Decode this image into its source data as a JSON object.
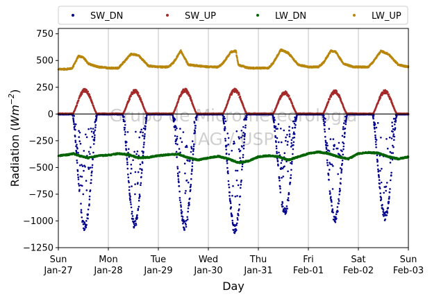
{
  "chart_data": {
    "type": "scatter",
    "xlabel": "Day",
    "ylabel_main": "Radiation (",
    "ylabel_unit": "Wm",
    "ylabel_exp": "−2",
    "ylabel_close": ")",
    "ylim": [
      -1250,
      800
    ],
    "yticks": [
      -1250,
      -1000,
      -750,
      -500,
      -250,
      0,
      250,
      500,
      750
    ],
    "ytick_labels": [
      "−1250",
      "−1000",
      "−750",
      "−500",
      "−250",
      "0",
      "250",
      "500",
      "750"
    ],
    "xlim_days": [
      0,
      7
    ],
    "xticks": [
      {
        "day": "Sun",
        "date": "Jan-27"
      },
      {
        "day": "Mon",
        "date": "Jan-28"
      },
      {
        "day": "Tue",
        "date": "Jan-29"
      },
      {
        "day": "Wed",
        "date": "Jan-30"
      },
      {
        "day": "Thu",
        "date": "Jan-31"
      },
      {
        "day": "Fri",
        "date": "Feb-01"
      },
      {
        "day": "Sat",
        "date": "Feb-02"
      },
      {
        "day": "Sun",
        "date": "Feb-03"
      }
    ],
    "grid": "vertical",
    "legend_position": "top",
    "zero_line": true,
    "watermark_line1": "Grupo de Micrometeorologia",
    "watermark_line2": "IAG / USP",
    "series": [
      {
        "name": "SW_DN",
        "color": "#00008b",
        "day_curve": {
          "sunrise": 0.28,
          "sunset": 0.78,
          "peak": [
            -1100,
            -1080,
            -1090,
            -1120,
            -950,
            -1020,
            -1000
          ]
        },
        "samples": [
          [
            0.0,
            -3
          ],
          [
            0.1,
            -2
          ],
          [
            0.2,
            -2
          ],
          [
            0.3,
            -150
          ],
          [
            0.35,
            -600
          ],
          [
            0.4,
            -900
          ],
          [
            0.45,
            -1150
          ],
          [
            0.5,
            -1000
          ],
          [
            0.55,
            -300
          ],
          [
            0.6,
            -800
          ],
          [
            0.65,
            -200
          ],
          [
            0.7,
            -50
          ],
          [
            0.8,
            -1
          ],
          [
            0.9,
            -2
          ],
          [
            1.3,
            -180
          ],
          [
            1.4,
            -700
          ],
          [
            1.45,
            -950
          ],
          [
            1.5,
            -1080
          ],
          [
            1.55,
            -1050
          ],
          [
            1.6,
            -880
          ],
          [
            1.65,
            -600
          ],
          [
            1.7,
            -300
          ],
          [
            1.75,
            -80
          ],
          [
            1.9,
            -2
          ],
          [
            2.3,
            -250
          ],
          [
            2.4,
            -600
          ],
          [
            2.45,
            -850
          ],
          [
            2.5,
            -1090
          ],
          [
            2.55,
            -900
          ],
          [
            2.6,
            -700
          ],
          [
            2.65,
            -400
          ],
          [
            2.7,
            -150
          ],
          [
            2.8,
            -2
          ],
          [
            2.9,
            -2
          ],
          [
            3.3,
            -200
          ],
          [
            3.4,
            -600
          ],
          [
            3.45,
            -900
          ],
          [
            3.5,
            -1120
          ],
          [
            3.55,
            -1000
          ],
          [
            3.6,
            -800
          ],
          [
            3.65,
            -500
          ],
          [
            3.7,
            -200
          ],
          [
            3.8,
            -3
          ],
          [
            3.9,
            -2
          ],
          [
            4.3,
            -200
          ],
          [
            4.4,
            -600
          ],
          [
            4.45,
            -800
          ],
          [
            4.5,
            -980
          ],
          [
            4.55,
            -900
          ],
          [
            4.6,
            -700
          ],
          [
            4.65,
            -450
          ],
          [
            4.7,
            -150
          ],
          [
            4.8,
            -2
          ],
          [
            4.9,
            -2
          ],
          [
            5.3,
            -150
          ],
          [
            5.4,
            -550
          ],
          [
            5.45,
            -850
          ],
          [
            5.5,
            -1030
          ],
          [
            5.55,
            -950
          ],
          [
            5.6,
            -750
          ],
          [
            5.65,
            -500
          ],
          [
            5.7,
            -200
          ],
          [
            5.8,
            -3
          ],
          [
            5.9,
            -2
          ],
          [
            6.3,
            -150
          ],
          [
            6.4,
            -550
          ],
          [
            6.45,
            -850
          ],
          [
            6.5,
            -1000
          ],
          [
            6.55,
            -950
          ],
          [
            6.6,
            -800
          ],
          [
            6.65,
            -500
          ],
          [
            6.7,
            -200
          ],
          [
            6.8,
            -3
          ],
          [
            6.9,
            -2
          ],
          [
            7.0,
            -2
          ]
        ]
      },
      {
        "name": "SW_UP",
        "color": "#a52a2a",
        "day_curve": {
          "sunrise": 0.28,
          "sunset": 0.78,
          "peak": [
            240,
            230,
            240,
            240,
            215,
            225,
            225
          ]
        },
        "samples": [
          [
            0.0,
            2
          ],
          [
            0.3,
            50
          ],
          [
            0.4,
            150
          ],
          [
            0.45,
            240
          ],
          [
            0.5,
            220
          ],
          [
            0.6,
            150
          ],
          [
            0.7,
            50
          ],
          [
            0.9,
            1
          ],
          [
            1.3,
            60
          ],
          [
            1.4,
            170
          ],
          [
            1.5,
            230
          ],
          [
            1.6,
            200
          ],
          [
            1.7,
            80
          ],
          [
            1.9,
            1
          ],
          [
            2.3,
            60
          ],
          [
            2.4,
            160
          ],
          [
            2.5,
            240
          ],
          [
            2.6,
            190
          ],
          [
            2.7,
            60
          ],
          [
            2.9,
            1
          ],
          [
            3.3,
            60
          ],
          [
            3.4,
            170
          ],
          [
            3.5,
            240
          ],
          [
            3.6,
            200
          ],
          [
            3.7,
            80
          ],
          [
            3.9,
            1
          ],
          [
            4.3,
            60
          ],
          [
            4.4,
            160
          ],
          [
            4.5,
            215
          ],
          [
            4.6,
            180
          ],
          [
            4.7,
            60
          ],
          [
            4.9,
            1
          ],
          [
            5.3,
            60
          ],
          [
            5.4,
            170
          ],
          [
            5.5,
            225
          ],
          [
            5.6,
            190
          ],
          [
            5.7,
            70
          ],
          [
            5.9,
            1
          ],
          [
            6.3,
            60
          ],
          [
            6.4,
            170
          ],
          [
            6.5,
            225
          ],
          [
            6.6,
            190
          ],
          [
            6.7,
            70
          ],
          [
            6.9,
            1
          ],
          [
            7.0,
            1
          ]
        ]
      },
      {
        "name": "LW_DN",
        "color": "#006400",
        "samples": [
          [
            0.0,
            -390
          ],
          [
            0.2,
            -380
          ],
          [
            0.3,
            -370
          ],
          [
            0.45,
            -395
          ],
          [
            0.6,
            -410
          ],
          [
            0.8,
            -390
          ],
          [
            1.0,
            -385
          ],
          [
            1.2,
            -370
          ],
          [
            1.4,
            -380
          ],
          [
            1.6,
            -410
          ],
          [
            1.8,
            -405
          ],
          [
            2.0,
            -390
          ],
          [
            2.2,
            -380
          ],
          [
            2.4,
            -375
          ],
          [
            2.6,
            -410
          ],
          [
            2.8,
            -430
          ],
          [
            3.0,
            -410
          ],
          [
            3.2,
            -395
          ],
          [
            3.4,
            -420
          ],
          [
            3.6,
            -455
          ],
          [
            3.8,
            -440
          ],
          [
            4.0,
            -400
          ],
          [
            4.2,
            -390
          ],
          [
            4.4,
            -400
          ],
          [
            4.6,
            -430
          ],
          [
            4.8,
            -400
          ],
          [
            5.0,
            -370
          ],
          [
            5.2,
            -355
          ],
          [
            5.4,
            -370
          ],
          [
            5.6,
            -400
          ],
          [
            5.8,
            -420
          ],
          [
            6.0,
            -370
          ],
          [
            6.2,
            -360
          ],
          [
            6.4,
            -365
          ],
          [
            6.6,
            -400
          ],
          [
            6.8,
            -420
          ],
          [
            7.0,
            -400
          ]
        ]
      },
      {
        "name": "LW_UP",
        "color": "#b8860b",
        "samples": [
          [
            0.0,
            420
          ],
          [
            0.2,
            420
          ],
          [
            0.28,
            430
          ],
          [
            0.4,
            540
          ],
          [
            0.5,
            530
          ],
          [
            0.6,
            470
          ],
          [
            0.8,
            440
          ],
          [
            1.0,
            430
          ],
          [
            1.2,
            430
          ],
          [
            1.3,
            480
          ],
          [
            1.45,
            560
          ],
          [
            1.6,
            550
          ],
          [
            1.8,
            450
          ],
          [
            2.0,
            440
          ],
          [
            2.2,
            440
          ],
          [
            2.3,
            480
          ],
          [
            2.45,
            590
          ],
          [
            2.6,
            460
          ],
          [
            2.8,
            450
          ],
          [
            3.0,
            440
          ],
          [
            3.2,
            440
          ],
          [
            3.3,
            480
          ],
          [
            3.45,
            580
          ],
          [
            3.55,
            590
          ],
          [
            3.6,
            460
          ],
          [
            3.8,
            430
          ],
          [
            4.0,
            430
          ],
          [
            4.2,
            430
          ],
          [
            4.3,
            480
          ],
          [
            4.45,
            600
          ],
          [
            4.6,
            570
          ],
          [
            4.8,
            460
          ],
          [
            5.0,
            440
          ],
          [
            5.2,
            440
          ],
          [
            5.3,
            480
          ],
          [
            5.45,
            590
          ],
          [
            5.55,
            580
          ],
          [
            5.7,
            470
          ],
          [
            5.9,
            440
          ],
          [
            6.0,
            440
          ],
          [
            6.2,
            440
          ],
          [
            6.3,
            490
          ],
          [
            6.45,
            590
          ],
          [
            6.6,
            560
          ],
          [
            6.8,
            460
          ],
          [
            7.0,
            440
          ]
        ]
      }
    ]
  }
}
